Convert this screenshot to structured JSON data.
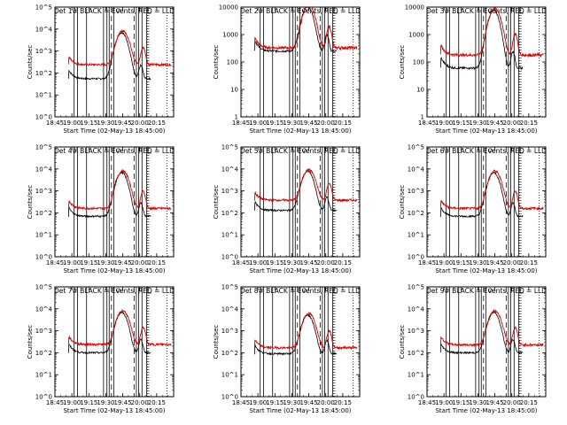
{
  "chart_data": {
    "type": "line",
    "start_date": "02-May-13",
    "panels": [
      {
        "det": 1,
        "title": "Det  1# BLACK = Events, RED = LLD",
        "ymin_exp": 0,
        "ymax_exp": 5,
        "ytick_labels": [
          "10^0",
          "10^1",
          "10^2",
          "10^3",
          "10^4",
          "10^5"
        ],
        "ylabel": "Counts/sec",
        "x_tick_labels": [
          "18:45",
          "19:00",
          "19:15",
          "19:30",
          "19:45",
          "20:00",
          "20:15"
        ],
        "xlabel": "Start Time (02-May-13 18:45:00)",
        "black_base": 55,
        "red_base": 240,
        "peak": 8000
      },
      {
        "det": 2,
        "title": "Det  2# BLACK = Events, RED = LLD",
        "ymin_exp": 0,
        "ymax_exp": 4,
        "ytick_labels": [
          "1",
          "10",
          "100",
          "1000",
          "10000"
        ],
        "ylabel": "Counts/sec",
        "x_tick_labels": [
          "18:45",
          "19:00",
          "19:15",
          "19:30",
          "19:45",
          "20:00",
          "20:15"
        ],
        "xlabel": "Start Time (02-May-13 18:45:00)",
        "black_base": 250,
        "red_base": 330,
        "peak": 12000
      },
      {
        "det": 3,
        "title": "Det  3# BLACK = Events, RED = LLD",
        "ymin_exp": 0,
        "ymax_exp": 4,
        "ytick_labels": [
          "1",
          "10",
          "100",
          "1000",
          "10000"
        ],
        "ylabel": "Counts/sec",
        "x_tick_labels": [
          "18:45",
          "19:00",
          "19:15",
          "19:30",
          "19:45",
          "20:00",
          "20:15"
        ],
        "xlabel": "Start Time (02-May-13 18:45:00)",
        "black_base": 60,
        "red_base": 180,
        "peak": 9000
      },
      {
        "det": 4,
        "title": "Det  4# BLACK = Events, RED = LLD",
        "ymin_exp": 0,
        "ymax_exp": 5,
        "ytick_labels": [
          "10^0",
          "10^1",
          "10^2",
          "10^3",
          "10^4",
          "10^5"
        ],
        "ylabel": "Counts/sec",
        "x_tick_labels": [
          "18:45",
          "19:00",
          "19:15",
          "19:30",
          "19:45",
          "20:00",
          "20:15"
        ],
        "xlabel": "Start Time (02-May-13 18:45:00)",
        "black_base": 70,
        "red_base": 160,
        "peak": 8000
      },
      {
        "det": 5,
        "title": "Det  5# BLACK = Events, RED = LLD",
        "ymin_exp": 0,
        "ymax_exp": 5,
        "ytick_labels": [
          "10^0",
          "10^1",
          "10^2",
          "10^3",
          "10^4",
          "10^5"
        ],
        "ylabel": "Counts/sec",
        "x_tick_labels": [
          "18:45",
          "19:00",
          "19:15",
          "19:30",
          "19:45",
          "20:00",
          "20:15"
        ],
        "xlabel": "Start Time (02-May-13 18:45:00)",
        "black_base": 130,
        "red_base": 380,
        "peak": 9000
      },
      {
        "det": 6,
        "title": "Det  6# BLACK = Events, RED = LLD",
        "ymin_exp": 0,
        "ymax_exp": 5,
        "ytick_labels": [
          "10^0",
          "10^1",
          "10^2",
          "10^3",
          "10^4",
          "10^5"
        ],
        "ylabel": "Counts/sec",
        "x_tick_labels": [
          "18:45",
          "19:00",
          "19:15",
          "19:30",
          "19:45",
          "20:00",
          "20:15"
        ],
        "xlabel": "Start Time (02-May-13 18:45:00)",
        "black_base": 70,
        "red_base": 160,
        "peak": 8000
      },
      {
        "det": 7,
        "title": "Det  7# BLACK = Events, RED = LLD",
        "ymin_exp": 0,
        "ymax_exp": 5,
        "ytick_labels": [
          "10^0",
          "10^1",
          "10^2",
          "10^3",
          "10^4",
          "10^5"
        ],
        "ylabel": "Counts/sec",
        "x_tick_labels": [
          "18:45",
          "19:00",
          "19:15",
          "19:30",
          "19:45",
          "20:00",
          "20:15"
        ],
        "xlabel": "Start Time (02-May-13 18:45:00)",
        "black_base": 100,
        "red_base": 240,
        "peak": 8000
      },
      {
        "det": 8,
        "title": "Det  8# BLACK = Events, RED = LLD",
        "ymin_exp": 0,
        "ymax_exp": 5,
        "ytick_labels": [
          "10^0",
          "10^1",
          "10^2",
          "10^3",
          "10^4",
          "10^5"
        ],
        "ylabel": "Counts/sec",
        "x_tick_labels": [
          "18:45",
          "19:00",
          "19:15",
          "19:30",
          "19:45",
          "20:00",
          "20:15"
        ],
        "xlabel": "Start Time (02-May-13 18:45:00)",
        "black_base": 90,
        "red_base": 170,
        "peak": 6000
      },
      {
        "det": 9,
        "title": "Det  9# BLACK = Events, RED = LLD",
        "ymin_exp": 0,
        "ymax_exp": 5,
        "ytick_labels": [
          "10^0",
          "10^1",
          "10^2",
          "10^3",
          "10^4",
          "10^5"
        ],
        "ylabel": "Counts/sec",
        "x_tick_labels": [
          "18:45",
          "19:00",
          "19:15",
          "19:30",
          "19:45",
          "20:00",
          "20:15"
        ],
        "xlabel": "Start Time (02-May-13 18:45:00)",
        "black_base": 100,
        "red_base": 230,
        "peak": 8000
      }
    ],
    "xlim": [
      "18:45",
      "20:30"
    ],
    "solid_markers": [
      "19:02",
      "19:05",
      "19:13",
      "19:28",
      "19:31",
      "19:33",
      "19:37",
      "19:57",
      "19:59",
      "20:02",
      "20:06"
    ],
    "dashed_markers": [
      "19:35",
      "19:55"
    ],
    "dotted_markers": [
      "20:07",
      "20:08",
      "20:24"
    ],
    "flare_black_times": [
      "18:55",
      "19:00",
      "19:30",
      "19:35",
      "19:44",
      "19:56",
      "20:00",
      "20:06",
      "20:10"
    ],
    "flare_red_times": [
      "19:00",
      "19:36",
      "19:45",
      "19:52",
      "20:02",
      "20:06",
      "20:08"
    ],
    "series": [
      {
        "name": "BLACK = Events",
        "color": "#000000"
      },
      {
        "name": "RED = LLD",
        "color": "#dd0000"
      }
    ]
  }
}
